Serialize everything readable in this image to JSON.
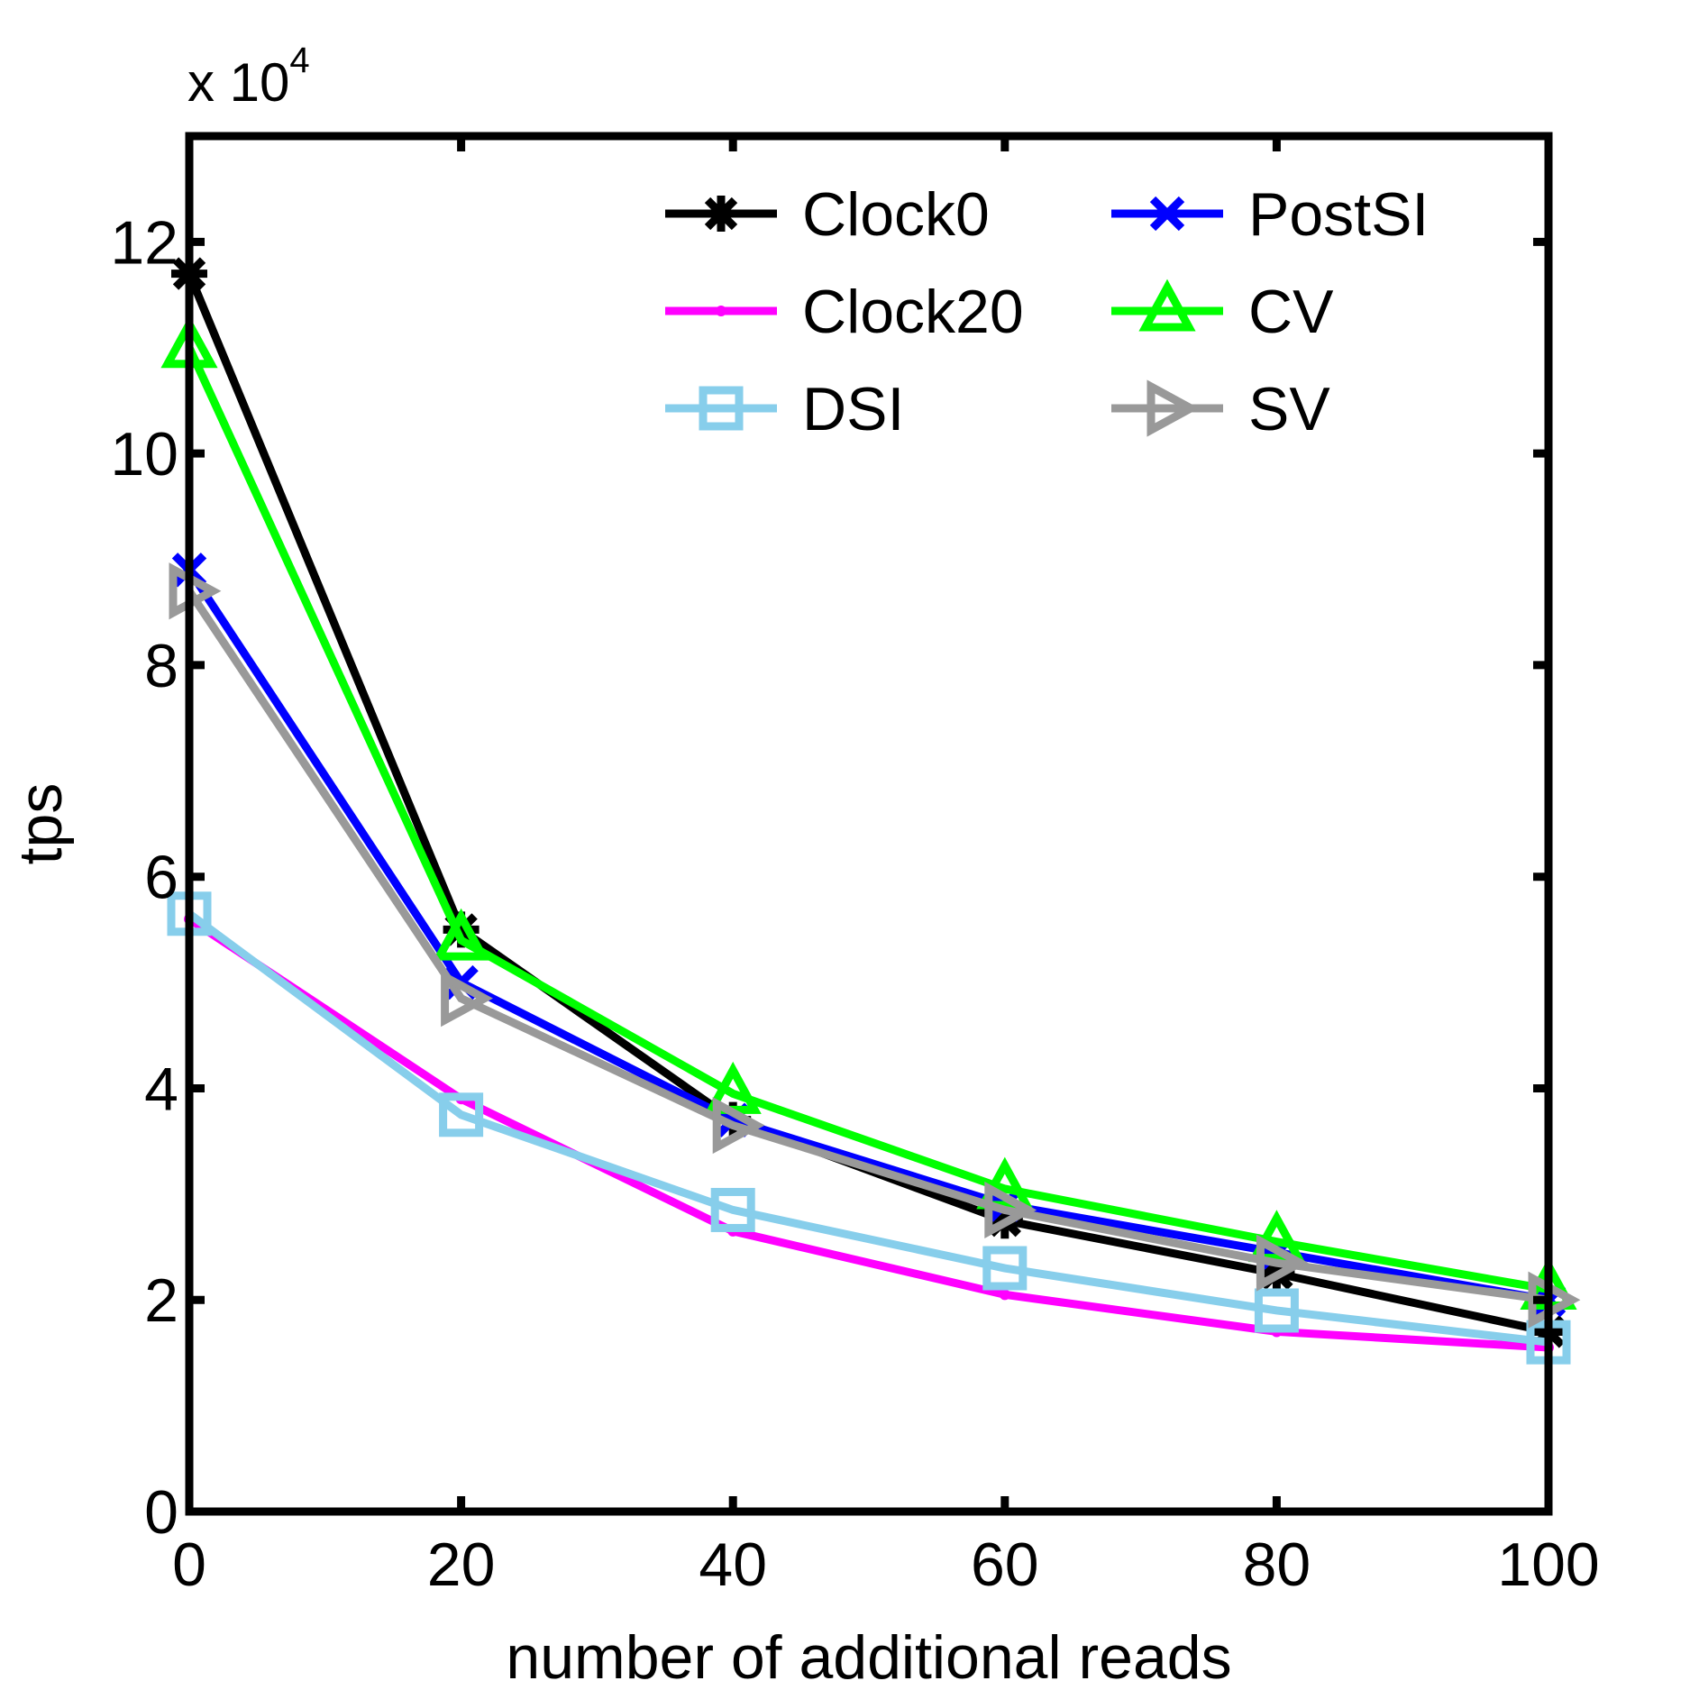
{
  "chart_data": {
    "type": "line",
    "title": "",
    "xlabel": "number of additional reads",
    "ylabel": "tps",
    "y_multiplier_label": "x 10",
    "y_multiplier_exponent": "4",
    "x": [
      0,
      20,
      40,
      60,
      80,
      100
    ],
    "xlim": [
      0,
      100
    ],
    "ylim": [
      0,
      13
    ],
    "x_ticks": [
      "0",
      "20",
      "40",
      "60",
      "80",
      "100"
    ],
    "y_ticks": [
      "0",
      "2",
      "4",
      "6",
      "8",
      "10",
      "12"
    ],
    "grid": false,
    "legend_position": "top-right",
    "series": [
      {
        "name": "Clock0",
        "color": "#000000",
        "marker": "asterisk",
        "values": [
          11.7,
          5.5,
          3.7,
          2.75,
          2.25,
          1.7
        ]
      },
      {
        "name": "PostSI",
        "color": "#0000ff",
        "marker": "x",
        "values": [
          8.9,
          5.0,
          3.7,
          2.9,
          2.45,
          2.0
        ]
      },
      {
        "name": "Clock20",
        "color": "#ff00ff",
        "marker": "point",
        "values": [
          5.6,
          3.9,
          2.65,
          2.05,
          1.7,
          1.55
        ]
      },
      {
        "name": "CV",
        "color": "#00ff00",
        "marker": "triangle-up",
        "values": [
          11.0,
          5.4,
          3.95,
          3.05,
          2.55,
          2.1
        ]
      },
      {
        "name": "DSI",
        "color": "#87ceeb",
        "marker": "square",
        "values": [
          5.65,
          3.75,
          2.85,
          2.3,
          1.9,
          1.6
        ]
      },
      {
        "name": "SV",
        "color": "#999999",
        "marker": "triangle-right",
        "values": [
          8.7,
          4.85,
          3.65,
          2.85,
          2.35,
          2.0
        ]
      }
    ]
  }
}
